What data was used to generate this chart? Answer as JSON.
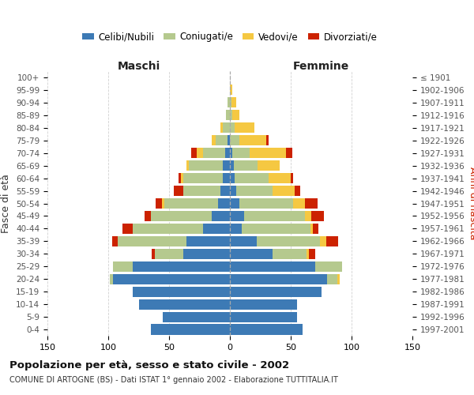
{
  "age_groups": [
    "0-4",
    "5-9",
    "10-14",
    "15-19",
    "20-24",
    "25-29",
    "30-34",
    "35-39",
    "40-44",
    "45-49",
    "50-54",
    "55-59",
    "60-64",
    "65-69",
    "70-74",
    "75-79",
    "80-84",
    "85-89",
    "90-94",
    "95-99",
    "100+"
  ],
  "birth_years": [
    "1997-2001",
    "1992-1996",
    "1987-1991",
    "1982-1986",
    "1977-1981",
    "1972-1976",
    "1967-1971",
    "1962-1966",
    "1957-1961",
    "1952-1956",
    "1947-1951",
    "1942-1946",
    "1937-1941",
    "1932-1936",
    "1927-1931",
    "1922-1926",
    "1917-1921",
    "1912-1916",
    "1907-1911",
    "1902-1906",
    "≤ 1901"
  ],
  "maschi": {
    "celibi": [
      65,
      55,
      75,
      80,
      96,
      80,
      38,
      36,
      22,
      15,
      10,
      8,
      6,
      6,
      4,
      2,
      0,
      0,
      0,
      0,
      0
    ],
    "coniugati": [
      0,
      0,
      0,
      0,
      3,
      16,
      24,
      56,
      58,
      50,
      44,
      30,
      32,
      28,
      18,
      10,
      6,
      3,
      2,
      0,
      0
    ],
    "vedovi": [
      0,
      0,
      0,
      0,
      0,
      0,
      0,
      0,
      0,
      0,
      2,
      0,
      2,
      2,
      5,
      3,
      2,
      0,
      0,
      0,
      0
    ],
    "divorziati": [
      0,
      0,
      0,
      0,
      0,
      0,
      2,
      5,
      8,
      5,
      5,
      8,
      2,
      0,
      5,
      0,
      0,
      0,
      0,
      0,
      0
    ]
  },
  "femmine": {
    "nubili": [
      60,
      55,
      55,
      75,
      80,
      70,
      35,
      22,
      10,
      12,
      8,
      5,
      4,
      3,
      2,
      0,
      0,
      0,
      0,
      0,
      0
    ],
    "coniugate": [
      0,
      0,
      0,
      0,
      8,
      22,
      28,
      52,
      56,
      50,
      44,
      30,
      28,
      20,
      14,
      8,
      4,
      2,
      1,
      0,
      0
    ],
    "vedove": [
      0,
      0,
      0,
      0,
      2,
      0,
      2,
      5,
      2,
      5,
      10,
      18,
      18,
      18,
      30,
      22,
      16,
      6,
      4,
      2,
      0
    ],
    "divorziate": [
      0,
      0,
      0,
      0,
      0,
      0,
      5,
      10,
      5,
      10,
      10,
      5,
      2,
      0,
      5,
      2,
      0,
      0,
      0,
      0,
      0
    ]
  },
  "colors": {
    "celibi": "#3d7ab5",
    "coniugati": "#b5c98e",
    "vedovi": "#f5c842",
    "divorziati": "#cc2200"
  },
  "title": "Popolazione per età, sesso e stato civile - 2002",
  "subtitle": "COMUNE DI ARTOGNE (BS) - Dati ISTAT 1° gennaio 2002 - Elaborazione TUTTITALIA.IT",
  "xlabel_maschi": "Maschi",
  "xlabel_femmine": "Femmine",
  "ylabel_left": "Fasce di età",
  "ylabel_right": "Anni di nascita",
  "xlim": 150,
  "legend_labels": [
    "Celibi/Nubili",
    "Coniugati/e",
    "Vedovi/e",
    "Divorziati/e"
  ],
  "grid_color": "#cccccc"
}
